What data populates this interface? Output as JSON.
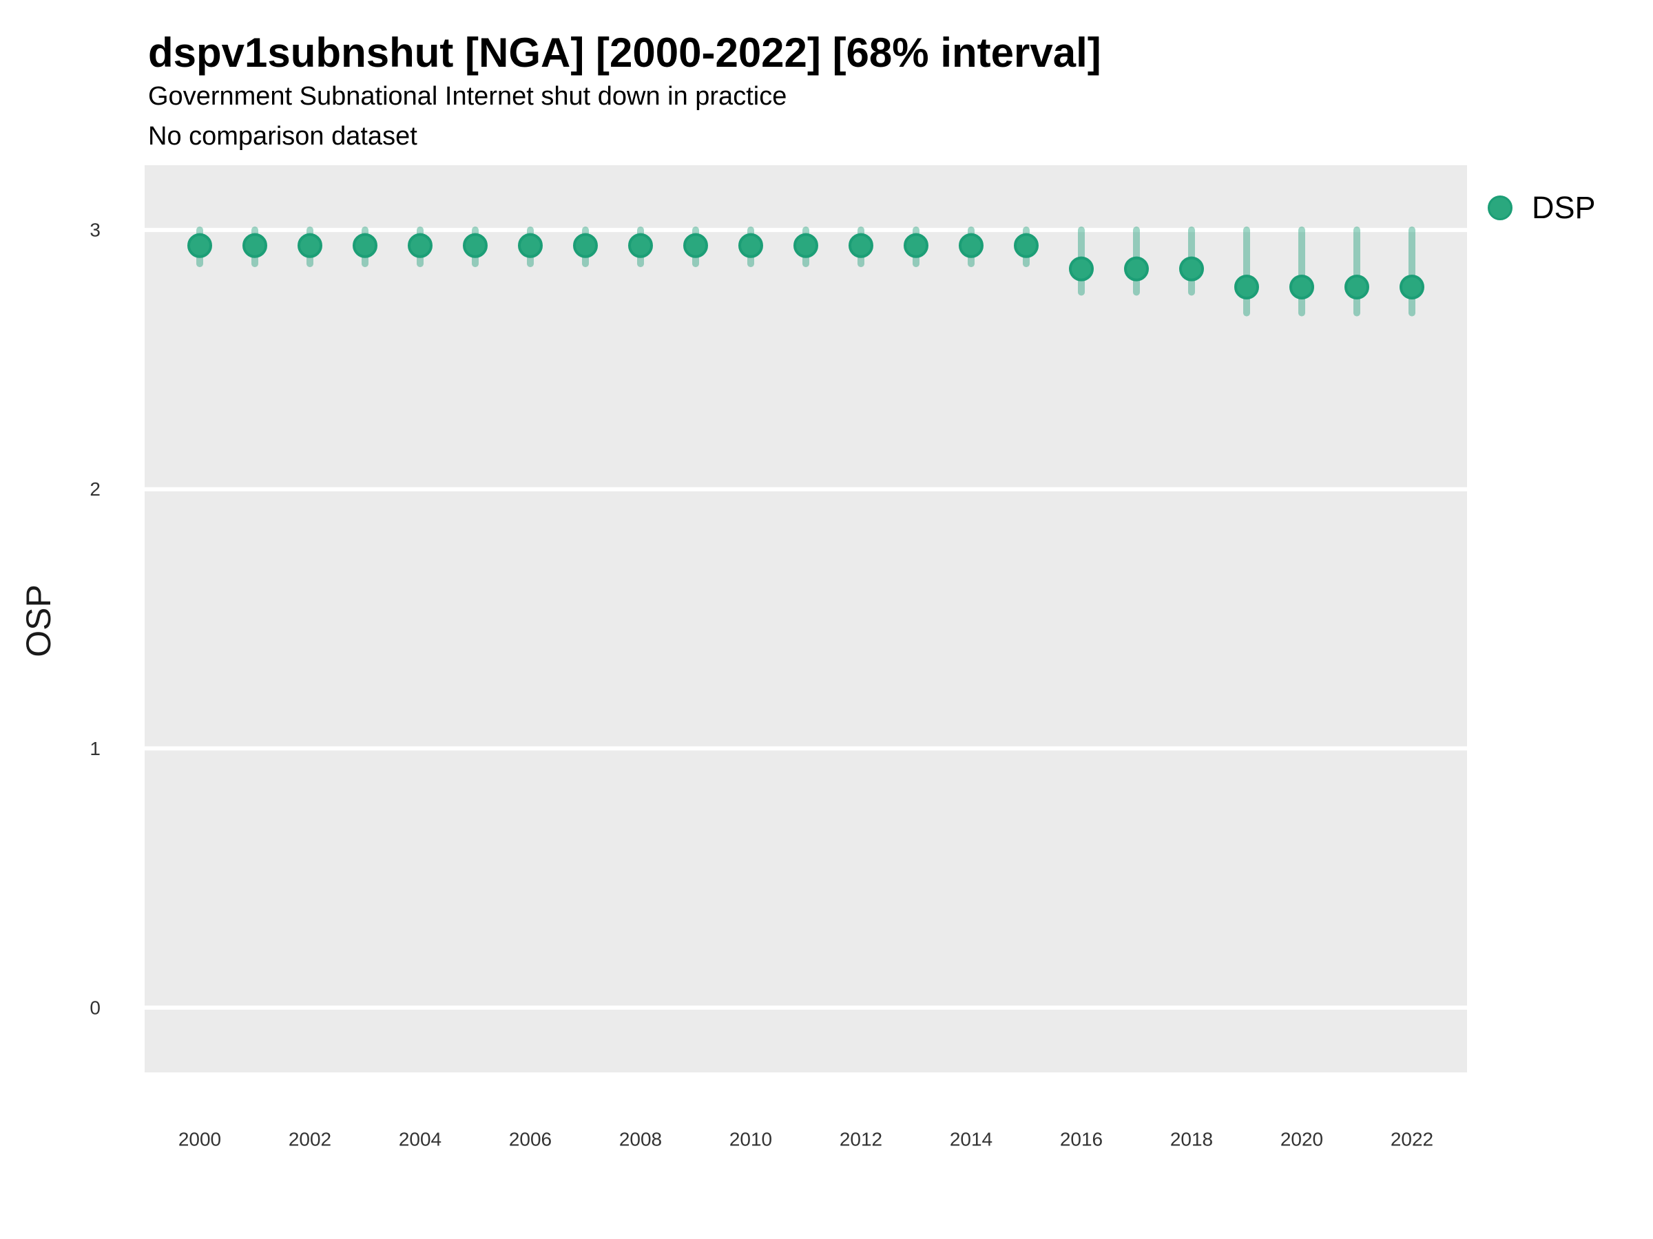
{
  "header": {
    "title": "dspv1subnshut [NGA] [2000-2022] [68% interval]",
    "subtitle": "Government Subnational Internet shut down in practice",
    "note": "No comparison dataset"
  },
  "y_axis": {
    "label": "OSP"
  },
  "legend": {
    "label": "DSP"
  },
  "colors": {
    "point_fill": "#2AA87E",
    "point_stroke": "#1C9E76",
    "interval": "rgba(27,158,119,0.42)",
    "panel_bg": "#EBEBEB",
    "gridline": "#FFFFFF",
    "tick_text": "#333333"
  },
  "chart_data": {
    "type": "scatter",
    "subtype": "pointrange",
    "title": "dspv1subnshut [NGA] [2000-2022] [68% interval]",
    "subtitle": "Government Subnational Internet shut down in practice",
    "caption": "No comparison dataset",
    "xlabel": "",
    "ylabel": "OSP",
    "interval_level": "68%",
    "grid": "horizontal-major-only",
    "legend_position": "right-top",
    "xlim": [
      1999,
      2023
    ],
    "ylim": [
      -0.25,
      3.25
    ],
    "x_ticks": [
      2000,
      2002,
      2004,
      2006,
      2008,
      2010,
      2012,
      2014,
      2016,
      2018,
      2020,
      2022
    ],
    "y_ticks": [
      0,
      1,
      2,
      3
    ],
    "series": [
      {
        "name": "DSP",
        "x": [
          2000,
          2001,
          2002,
          2003,
          2004,
          2005,
          2006,
          2007,
          2008,
          2009,
          2010,
          2011,
          2012,
          2013,
          2014,
          2015,
          2016,
          2017,
          2018,
          2019,
          2020,
          2021,
          2022
        ],
        "estimate": [
          2.94,
          2.94,
          2.94,
          2.94,
          2.94,
          2.94,
          2.94,
          2.94,
          2.94,
          2.94,
          2.94,
          2.94,
          2.94,
          2.94,
          2.94,
          2.94,
          2.85,
          2.85,
          2.85,
          2.78,
          2.78,
          2.78,
          2.78
        ],
        "lo": [
          2.87,
          2.87,
          2.87,
          2.87,
          2.87,
          2.87,
          2.87,
          2.87,
          2.87,
          2.87,
          2.87,
          2.87,
          2.87,
          2.87,
          2.87,
          2.87,
          2.76,
          2.76,
          2.76,
          2.68,
          2.68,
          2.68,
          2.68
        ],
        "hi": [
          3.0,
          3.0,
          3.0,
          3.0,
          3.0,
          3.0,
          3.0,
          3.0,
          3.0,
          3.0,
          3.0,
          3.0,
          3.0,
          3.0,
          3.0,
          3.0,
          3.0,
          3.0,
          3.0,
          3.0,
          3.0,
          3.0,
          3.0
        ]
      }
    ]
  }
}
